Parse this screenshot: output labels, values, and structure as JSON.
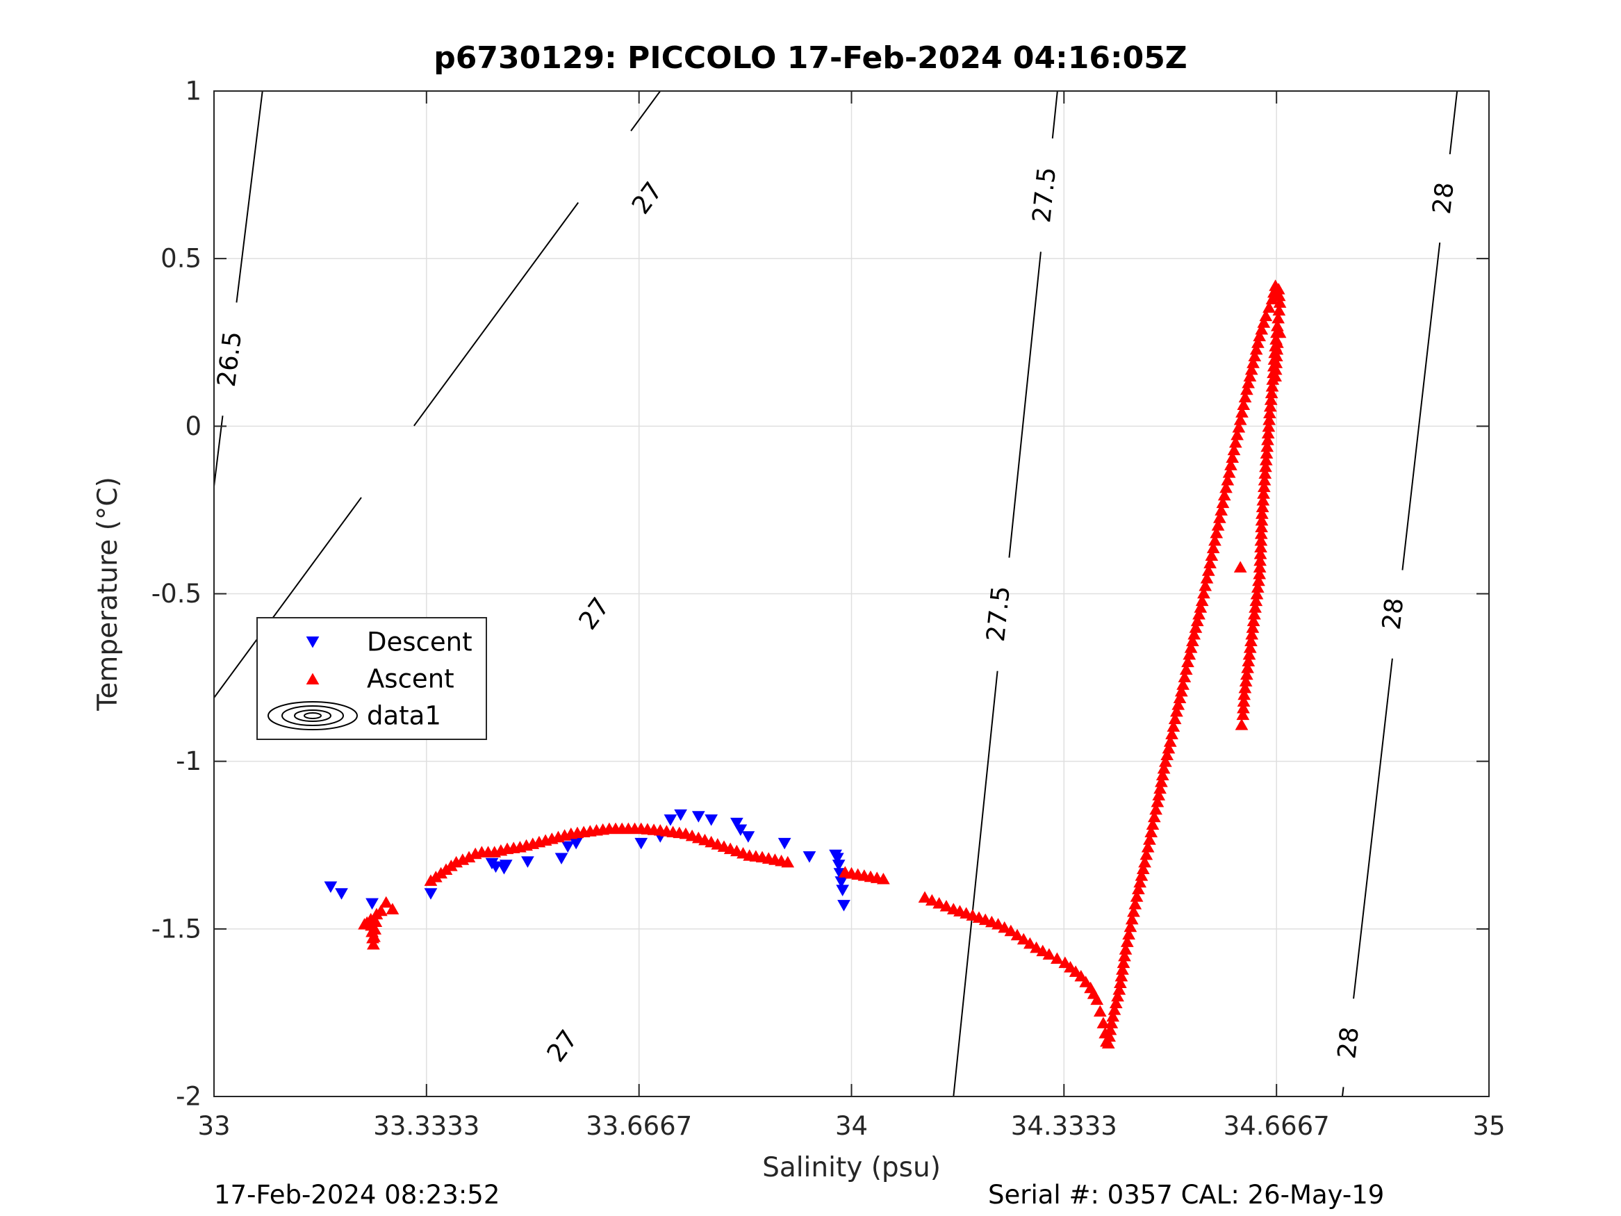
{
  "header": {
    "title": "p6730129: PICCOLO 17-Feb-2024 04:16:05Z"
  },
  "footer": {
    "timestamp": "17-Feb-2024 08:23:52",
    "serial_cal": "Serial #: 0357  CAL: 26-May-19"
  },
  "colors": {
    "descent": "#0000ff",
    "ascent": "#ff0000",
    "contour": "#000000",
    "grid": "#dfdfdf",
    "axis": "#262626"
  },
  "chart_data": {
    "type": "scatter",
    "title": "p6730129: PICCOLO 17-Feb-2024 04:16:05Z",
    "xlabel": "Salinity (psu)",
    "ylabel": "Temperature (°C)",
    "xlim": [
      33,
      35
    ],
    "ylim": [
      -2,
      1
    ],
    "xticks": [
      33,
      33.3333,
      33.6667,
      34,
      34.3333,
      34.6667,
      35
    ],
    "xtick_labels": [
      "33",
      "33.3333",
      "33.6667",
      "34",
      "34.3333",
      "34.6667",
      "35"
    ],
    "yticks": [
      -2,
      -1.5,
      -1,
      -0.5,
      0,
      0.5,
      1
    ],
    "ytick_labels": [
      "-2",
      "-1.5",
      "-1",
      "-0.5",
      "0",
      "0.5",
      "1"
    ],
    "grid": true,
    "legend": {
      "placement": "left",
      "entries": [
        "Descent",
        "Ascent",
        "data1"
      ]
    },
    "contours": [
      {
        "level": "26.5",
        "points": [
          [
            33.0,
            -0.18
          ],
          [
            33.076,
            1.0
          ]
        ],
        "label_positions": [
          [
            33.025,
            0.2
          ]
        ]
      },
      {
        "level": "27",
        "points": [
          [
            32.54,
            -2.0
          ],
          [
            33.7,
            1.0
          ]
        ],
        "label_positions": [
          [
            33.68,
            0.68
          ],
          [
            33.597,
            -0.56
          ],
          [
            33.547,
            -1.85
          ]
        ]
      },
      {
        "level": "27.5",
        "points": [
          [
            34.16,
            -2.0
          ],
          [
            34.323,
            1.0
          ]
        ],
        "label_positions": [
          [
            34.303,
            0.69
          ],
          [
            34.231,
            -0.56
          ]
        ]
      },
      {
        "level": "28",
        "points": [
          [
            34.77,
            -2.0
          ],
          [
            34.95,
            1.0
          ]
        ],
        "label_positions": [
          [
            34.929,
            0.68
          ],
          [
            34.85,
            -0.56
          ],
          [
            34.78,
            -1.84
          ]
        ]
      }
    ],
    "series": [
      {
        "name": "Descent",
        "marker": "triangle-down",
        "points": [
          [
            33.183,
            -1.375
          ],
          [
            33.2,
            -1.395
          ],
          [
            33.248,
            -1.425
          ],
          [
            33.34,
            -1.395
          ],
          [
            33.436,
            -1.305
          ],
          [
            33.442,
            -1.315
          ],
          [
            33.455,
            -1.32
          ],
          [
            33.458,
            -1.31
          ],
          [
            33.492,
            -1.3
          ],
          [
            33.545,
            -1.29
          ],
          [
            33.555,
            -1.255
          ],
          [
            33.568,
            -1.245
          ],
          [
            33.67,
            -1.245
          ],
          [
            33.7,
            -1.225
          ],
          [
            33.716,
            -1.175
          ],
          [
            33.732,
            -1.16
          ],
          [
            33.76,
            -1.165
          ],
          [
            33.78,
            -1.175
          ],
          [
            33.82,
            -1.185
          ],
          [
            33.826,
            -1.205
          ],
          [
            33.838,
            -1.225
          ],
          [
            33.895,
            -1.245
          ],
          [
            33.934,
            -1.285
          ],
          [
            33.975,
            -1.28
          ],
          [
            33.978,
            -1.29
          ],
          [
            33.98,
            -1.31
          ],
          [
            33.982,
            -1.335
          ],
          [
            33.984,
            -1.36
          ],
          [
            33.986,
            -1.385
          ],
          [
            33.988,
            -1.43
          ]
        ]
      },
      {
        "name": "Ascent",
        "marker": "triangle-up",
        "points": [
          [
            33.236,
            -1.485
          ],
          [
            33.24,
            -1.48
          ],
          [
            33.246,
            -1.47
          ],
          [
            33.25,
            -1.545
          ],
          [
            33.255,
            -1.455
          ],
          [
            33.262,
            -1.445
          ],
          [
            33.27,
            -1.42
          ],
          [
            33.28,
            -1.44
          ],
          [
            33.34,
            -1.355
          ],
          [
            33.38,
            -1.3
          ],
          [
            33.4,
            -1.285
          ],
          [
            33.41,
            -1.275
          ],
          [
            33.42,
            -1.27
          ],
          [
            33.44,
            -1.27
          ],
          [
            33.46,
            -1.26
          ],
          [
            33.48,
            -1.255
          ],
          [
            33.5,
            -1.245
          ],
          [
            33.52,
            -1.235
          ],
          [
            33.54,
            -1.225
          ],
          [
            33.56,
            -1.215
          ],
          [
            33.6,
            -1.205
          ],
          [
            33.62,
            -1.2
          ],
          [
            33.67,
            -1.2
          ],
          [
            33.7,
            -1.205
          ],
          [
            33.72,
            -1.21
          ],
          [
            33.74,
            -1.215
          ],
          [
            33.78,
            -1.24
          ],
          [
            33.84,
            -1.28
          ],
          [
            33.86,
            -1.285
          ],
          [
            33.9,
            -1.3
          ],
          [
            33.99,
            -1.33
          ],
          [
            34.05,
            -1.35
          ],
          [
            34.115,
            -1.405
          ],
          [
            34.16,
            -1.44
          ],
          [
            34.2,
            -1.465
          ],
          [
            34.23,
            -1.485
          ],
          [
            34.25,
            -1.505
          ],
          [
            34.27,
            -1.53
          ],
          [
            34.29,
            -1.555
          ],
          [
            34.31,
            -1.575
          ],
          [
            34.335,
            -1.6
          ],
          [
            34.36,
            -1.64
          ],
          [
            34.375,
            -1.675
          ],
          [
            34.385,
            -1.71
          ],
          [
            34.39,
            -1.745
          ],
          [
            34.395,
            -1.78
          ],
          [
            34.398,
            -1.81
          ],
          [
            34.4,
            -1.835
          ],
          [
            34.403,
            -1.84
          ],
          [
            34.406,
            -1.8
          ],
          [
            34.41,
            -1.76
          ],
          [
            34.415,
            -1.72
          ],
          [
            34.42,
            -1.68
          ],
          [
            34.425,
            -1.62
          ],
          [
            34.43,
            -1.56
          ],
          [
            34.44,
            -1.47
          ],
          [
            34.45,
            -1.38
          ],
          [
            34.46,
            -1.3
          ],
          [
            34.47,
            -1.21
          ],
          [
            34.48,
            -1.12
          ],
          [
            34.49,
            -1.02
          ],
          [
            34.5,
            -0.94
          ],
          [
            34.51,
            -0.85
          ],
          [
            34.52,
            -0.77
          ],
          [
            34.53,
            -0.68
          ],
          [
            34.54,
            -0.6
          ],
          [
            34.55,
            -0.52
          ],
          [
            34.56,
            -0.43
          ],
          [
            34.57,
            -0.34
          ],
          [
            34.58,
            -0.25
          ],
          [
            34.59,
            -0.16
          ],
          [
            34.6,
            -0.07
          ],
          [
            34.61,
            0.02
          ],
          [
            34.62,
            0.11
          ],
          [
            34.63,
            0.19
          ],
          [
            34.64,
            0.27
          ],
          [
            34.65,
            0.33
          ],
          [
            34.66,
            0.38
          ],
          [
            34.665,
            0.42
          ],
          [
            34.67,
            0.41
          ],
          [
            34.672,
            0.37
          ],
          [
            34.668,
            0.3
          ],
          [
            34.664,
            0.22
          ],
          [
            34.66,
            0.12
          ],
          [
            34.656,
            0.04
          ],
          [
            34.652,
            -0.06
          ],
          [
            34.648,
            -0.16
          ],
          [
            34.644,
            -0.26
          ],
          [
            34.642,
            -0.36
          ],
          [
            34.64,
            -0.44
          ],
          [
            34.636,
            -0.5
          ],
          [
            34.632,
            -0.56
          ],
          [
            34.628,
            -0.62
          ],
          [
            34.624,
            -0.68
          ],
          [
            34.62,
            -0.74
          ],
          [
            34.616,
            -0.8
          ],
          [
            34.614,
            -0.86
          ],
          [
            34.612,
            -0.89
          ],
          [
            34.61,
            -0.42
          ],
          [
            34.672,
            0.28
          ],
          [
            34.668,
            0.25
          ],
          [
            34.665,
            0.15
          ]
        ]
      }
    ]
  }
}
